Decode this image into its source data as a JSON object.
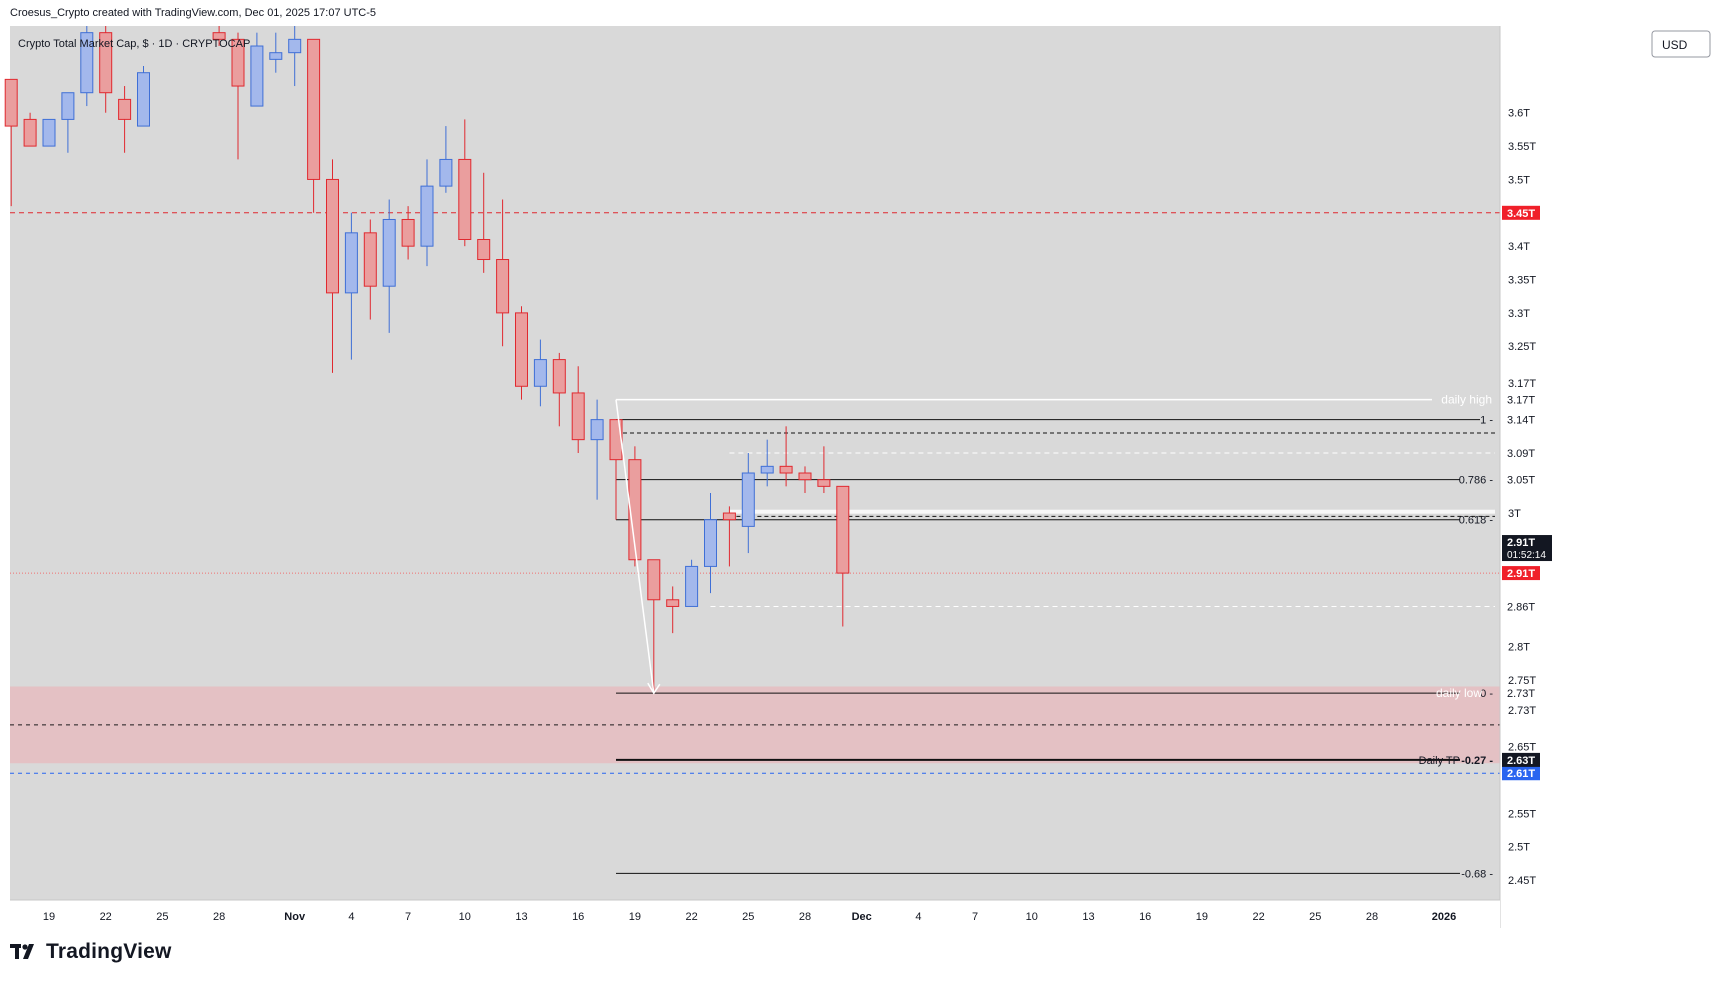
{
  "header": {
    "credit": "Croesus_Crypto created with TradingView.com, Dec 01, 2025 17:07 UTC-5",
    "legend": "Crypto Total Market Cap, $ · 1D · CRYPTOCAP",
    "currency": "USD"
  },
  "branding": {
    "name": "TradingView",
    "logo_icon": "tradingview-logo-icon"
  },
  "colors": {
    "background": "#d9d9d9",
    "up_fill": "#a3b8ec",
    "up_border": "#3f6fd6",
    "down_fill": "#ea9e9e",
    "down_border": "#e0292f",
    "zone": "#e4c1c4",
    "red_badge": "#f0202a",
    "blue_badge": "#2965f0"
  },
  "chart_data": {
    "type": "candlestick",
    "symbol": "Crypto Total Market Cap",
    "interval": "1D",
    "currency": "USD",
    "ylim": [
      2.42,
      3.73
    ],
    "y_ticks": [
      {
        "value": 3.6,
        "label": "3.6T"
      },
      {
        "value": 3.55,
        "label": "3.55T"
      },
      {
        "value": 3.5,
        "label": "3.5T"
      },
      {
        "value": 3.4,
        "label": "3.4T"
      },
      {
        "value": 3.35,
        "label": "3.35T"
      },
      {
        "value": 3.3,
        "label": "3.3T"
      },
      {
        "value": 3.25,
        "label": "3.25T"
      },
      {
        "value": 3.0,
        "label": "3T"
      },
      {
        "value": 2.8,
        "label": "2.8T"
      },
      {
        "value": 2.75,
        "label": "2.75T"
      },
      {
        "value": 2.65,
        "label": "2.65T"
      },
      {
        "value": 2.55,
        "label": "2.55T"
      },
      {
        "value": 2.5,
        "label": "2.5T"
      },
      {
        "value": 2.45,
        "label": "2.45T"
      }
    ],
    "x_ticks": [
      {
        "day": 0,
        "label": "19"
      },
      {
        "day": 3,
        "label": "22"
      },
      {
        "day": 6,
        "label": "25"
      },
      {
        "day": 9,
        "label": "28"
      },
      {
        "day": 13,
        "label": "Nov"
      },
      {
        "day": 16,
        "label": "4"
      },
      {
        "day": 19,
        "label": "7"
      },
      {
        "day": 22,
        "label": "10"
      },
      {
        "day": 25,
        "label": "13"
      },
      {
        "day": 28,
        "label": "16"
      },
      {
        "day": 31,
        "label": "19"
      },
      {
        "day": 34,
        "label": "22"
      },
      {
        "day": 37,
        "label": "25"
      },
      {
        "day": 40,
        "label": "28"
      },
      {
        "day": 43,
        "label": "Dec"
      },
      {
        "day": 46,
        "label": "4"
      },
      {
        "day": 49,
        "label": "7"
      },
      {
        "day": 52,
        "label": "10"
      },
      {
        "day": 55,
        "label": "13"
      },
      {
        "day": 58,
        "label": "16"
      },
      {
        "day": 61,
        "label": "19"
      },
      {
        "day": 64,
        "label": "22"
      },
      {
        "day": 67,
        "label": "25"
      },
      {
        "day": 70,
        "label": "28"
      },
      {
        "day": 74,
        "label": "2026"
      }
    ],
    "candles": [
      {
        "day": -2,
        "o": 3.65,
        "h": 3.65,
        "l": 3.46,
        "c": 3.58
      },
      {
        "day": -1,
        "o": 3.59,
        "h": 3.6,
        "l": 3.55,
        "c": 3.55
      },
      {
        "day": 0,
        "o": 3.55,
        "h": 3.59,
        "l": 3.55,
        "c": 3.59
      },
      {
        "day": 1,
        "o": 3.59,
        "h": 3.63,
        "l": 3.54,
        "c": 3.63
      },
      {
        "day": 2,
        "o": 3.63,
        "h": 3.73,
        "l": 3.61,
        "c": 3.72
      },
      {
        "day": 3,
        "o": 3.72,
        "h": 3.73,
        "l": 3.6,
        "c": 3.63
      },
      {
        "day": 4,
        "o": 3.62,
        "h": 3.64,
        "l": 3.54,
        "c": 3.59
      },
      {
        "day": 5,
        "o": 3.58,
        "h": 3.67,
        "l": 3.58,
        "c": 3.66
      },
      {
        "day": 9,
        "o": 3.72,
        "h": 3.73,
        "l": 3.7,
        "c": 3.71
      },
      {
        "day": 10,
        "o": 3.71,
        "h": 3.72,
        "l": 3.53,
        "c": 3.64
      },
      {
        "day": 11,
        "o": 3.61,
        "h": 3.72,
        "l": 3.61,
        "c": 3.7
      },
      {
        "day": 12,
        "o": 3.68,
        "h": 3.72,
        "l": 3.66,
        "c": 3.69
      },
      {
        "day": 13,
        "o": 3.69,
        "h": 3.73,
        "l": 3.64,
        "c": 3.71
      },
      {
        "day": 14,
        "o": 3.71,
        "h": 3.71,
        "l": 3.45,
        "c": 3.5
      },
      {
        "day": 15,
        "o": 3.5,
        "h": 3.53,
        "l": 3.21,
        "c": 3.33
      },
      {
        "day": 16,
        "o": 3.33,
        "h": 3.45,
        "l": 3.23,
        "c": 3.42
      },
      {
        "day": 17,
        "o": 3.42,
        "h": 3.44,
        "l": 3.29,
        "c": 3.34
      },
      {
        "day": 18,
        "o": 3.34,
        "h": 3.47,
        "l": 3.27,
        "c": 3.44
      },
      {
        "day": 19,
        "o": 3.44,
        "h": 3.46,
        "l": 3.38,
        "c": 3.4
      },
      {
        "day": 20,
        "o": 3.4,
        "h": 3.53,
        "l": 3.37,
        "c": 3.49
      },
      {
        "day": 21,
        "o": 3.49,
        "h": 3.58,
        "l": 3.48,
        "c": 3.53
      },
      {
        "day": 22,
        "o": 3.53,
        "h": 3.59,
        "l": 3.4,
        "c": 3.41
      },
      {
        "day": 23,
        "o": 3.41,
        "h": 3.51,
        "l": 3.36,
        "c": 3.38
      },
      {
        "day": 24,
        "o": 3.38,
        "h": 3.47,
        "l": 3.25,
        "c": 3.3
      },
      {
        "day": 25,
        "o": 3.3,
        "h": 3.31,
        "l": 3.17,
        "c": 3.19
      },
      {
        "day": 26,
        "o": 3.19,
        "h": 3.26,
        "l": 3.16,
        "c": 3.23
      },
      {
        "day": 27,
        "o": 3.23,
        "h": 3.24,
        "l": 3.13,
        "c": 3.18
      },
      {
        "day": 28,
        "o": 3.18,
        "h": 3.22,
        "l": 3.09,
        "c": 3.11
      },
      {
        "day": 29,
        "o": 3.11,
        "h": 3.17,
        "l": 3.02,
        "c": 3.14
      },
      {
        "day": 30,
        "o": 3.14,
        "h": 3.14,
        "l": 2.99,
        "c": 3.08
      },
      {
        "day": 31,
        "o": 3.08,
        "h": 3.1,
        "l": 2.92,
        "c": 2.93
      },
      {
        "day": 32,
        "o": 2.93,
        "h": 2.93,
        "l": 2.73,
        "c": 2.87
      },
      {
        "day": 33,
        "o": 2.87,
        "h": 2.89,
        "l": 2.82,
        "c": 2.86
      },
      {
        "day": 34,
        "o": 2.86,
        "h": 2.93,
        "l": 2.86,
        "c": 2.92
      },
      {
        "day": 35,
        "o": 2.92,
        "h": 3.03,
        "l": 2.88,
        "c": 2.99
      },
      {
        "day": 36,
        "o": 3.0,
        "h": 3.01,
        "l": 2.92,
        "c": 2.99
      },
      {
        "day": 37,
        "o": 2.98,
        "h": 3.09,
        "l": 2.94,
        "c": 3.06
      },
      {
        "day": 38,
        "o": 3.06,
        "h": 3.11,
        "l": 3.04,
        "c": 3.07
      },
      {
        "day": 39,
        "o": 3.07,
        "h": 3.13,
        "l": 3.04,
        "c": 3.06
      },
      {
        "day": 40,
        "o": 3.06,
        "h": 3.07,
        "l": 3.03,
        "c": 3.05
      },
      {
        "day": 41,
        "o": 3.05,
        "h": 3.1,
        "l": 3.03,
        "c": 3.04
      },
      {
        "day": 42,
        "o": 3.04,
        "h": 3.04,
        "l": 2.83,
        "c": 2.91
      }
    ],
    "horizontal_lines": [
      {
        "price": 3.45,
        "label": "3.45T"
      },
      {
        "price": 2.91,
        "label": "2.91T"
      },
      {
        "price": 2.61,
        "label": "2.61T"
      }
    ],
    "zone": {
      "top": 2.74,
      "bottom": 2.625
    },
    "fibonacci": [
      {
        "level": "1",
        "price": 3.14,
        "label": "3.14T"
      },
      {
        "level": "0.786",
        "price": 3.05,
        "label": "3.05T"
      },
      {
        "level": "0.618",
        "price": 2.99
      },
      {
        "level": "0",
        "price": 2.73,
        "label": "2.73T"
      },
      {
        "level": "-0.27",
        "price": 2.63,
        "label": "2.63T",
        "text": "Daily TP"
      },
      {
        "level": "-0.68",
        "price": 2.46
      }
    ],
    "annotations": [
      {
        "text": "daily high",
        "price": 3.17,
        "label": "3.17T"
      },
      {
        "text": "daily low",
        "price": 2.73,
        "label": "2.73T"
      },
      {
        "price": 3.09,
        "label": "3.09T"
      },
      {
        "price": 2.86,
        "label": "2.86T"
      }
    ],
    "axis_extra_labels": [
      "3.17T",
      "2.73T"
    ],
    "last_price": {
      "price": 2.91,
      "label": "2.91T",
      "countdown": "01:52:14"
    }
  }
}
